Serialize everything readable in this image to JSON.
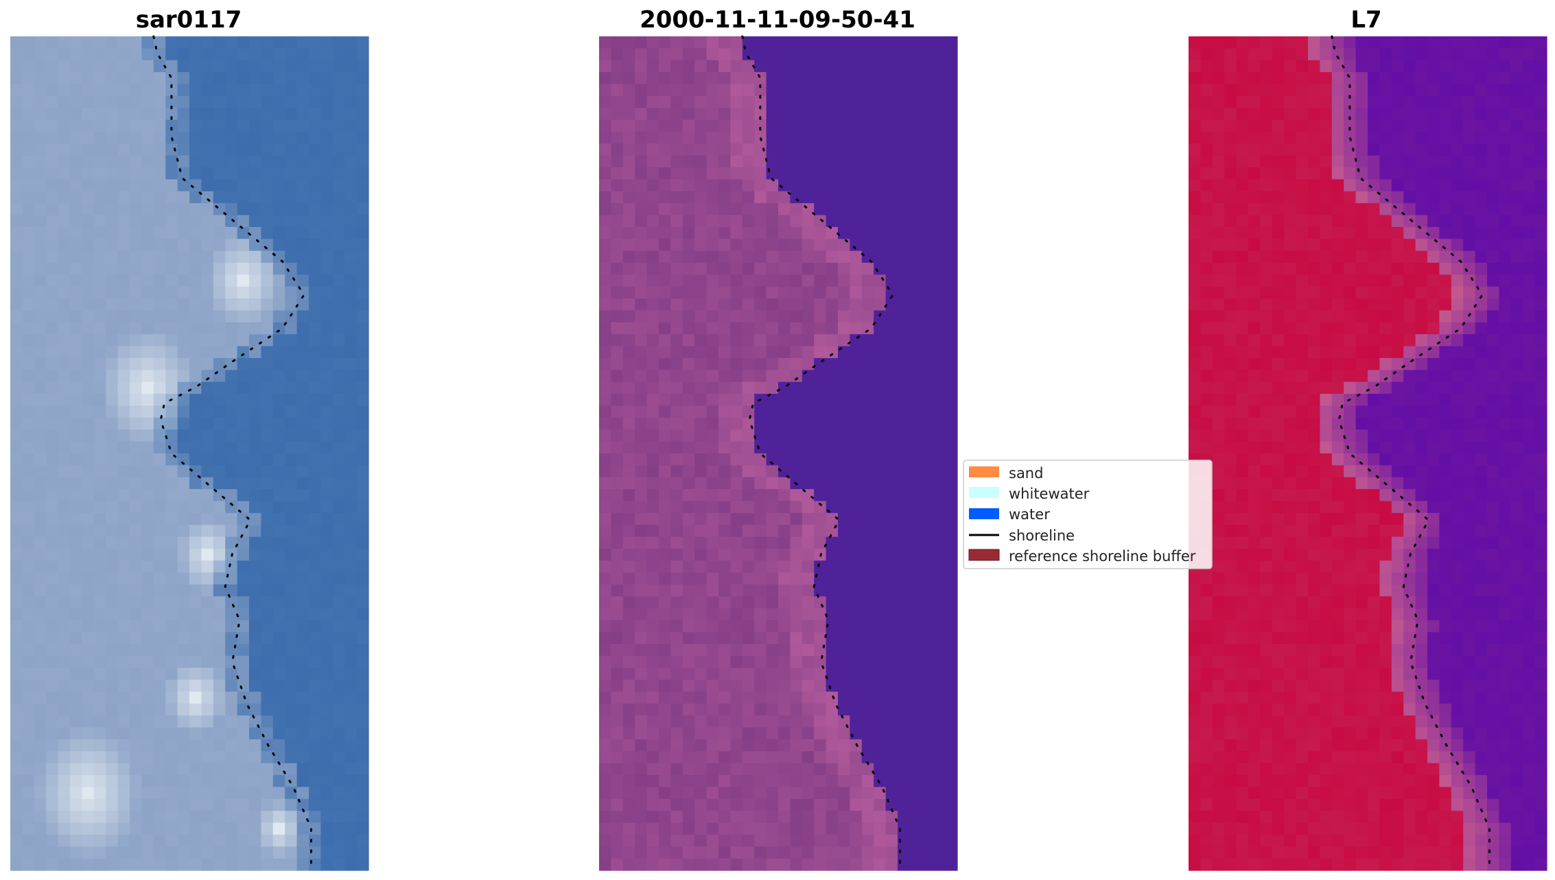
{
  "panels": [
    {
      "title": "sar0117",
      "kind": "rgb"
    },
    {
      "title": "2000-11-11-09-50-41",
      "kind": "classified"
    },
    {
      "title": "L7",
      "kind": "index"
    }
  ],
  "legend": {
    "items": [
      {
        "label": "sand",
        "color": "#ff8c3f",
        "type": "patch"
      },
      {
        "label": "whitewater",
        "color": "#c9fffe",
        "type": "patch"
      },
      {
        "label": "water",
        "color": "#005dfb",
        "type": "patch"
      },
      {
        "label": "shoreline",
        "color": "#000000",
        "type": "line"
      },
      {
        "label": "reference shoreline buffer",
        "color": "#9a2a33",
        "type": "patch"
      }
    ]
  },
  "colors": {
    "rgb_water": "#4272b0",
    "rgb_land": "#8da4c7",
    "rgb_white": "#e9f0f3",
    "class_water": "#50229a",
    "class_land": "#863f87",
    "class_land_light": "#b25b9c",
    "index_water": "#6b14a2",
    "index_land": "#c70c43",
    "index_edge": "#c45a8f",
    "shoreline": "#000000"
  }
}
